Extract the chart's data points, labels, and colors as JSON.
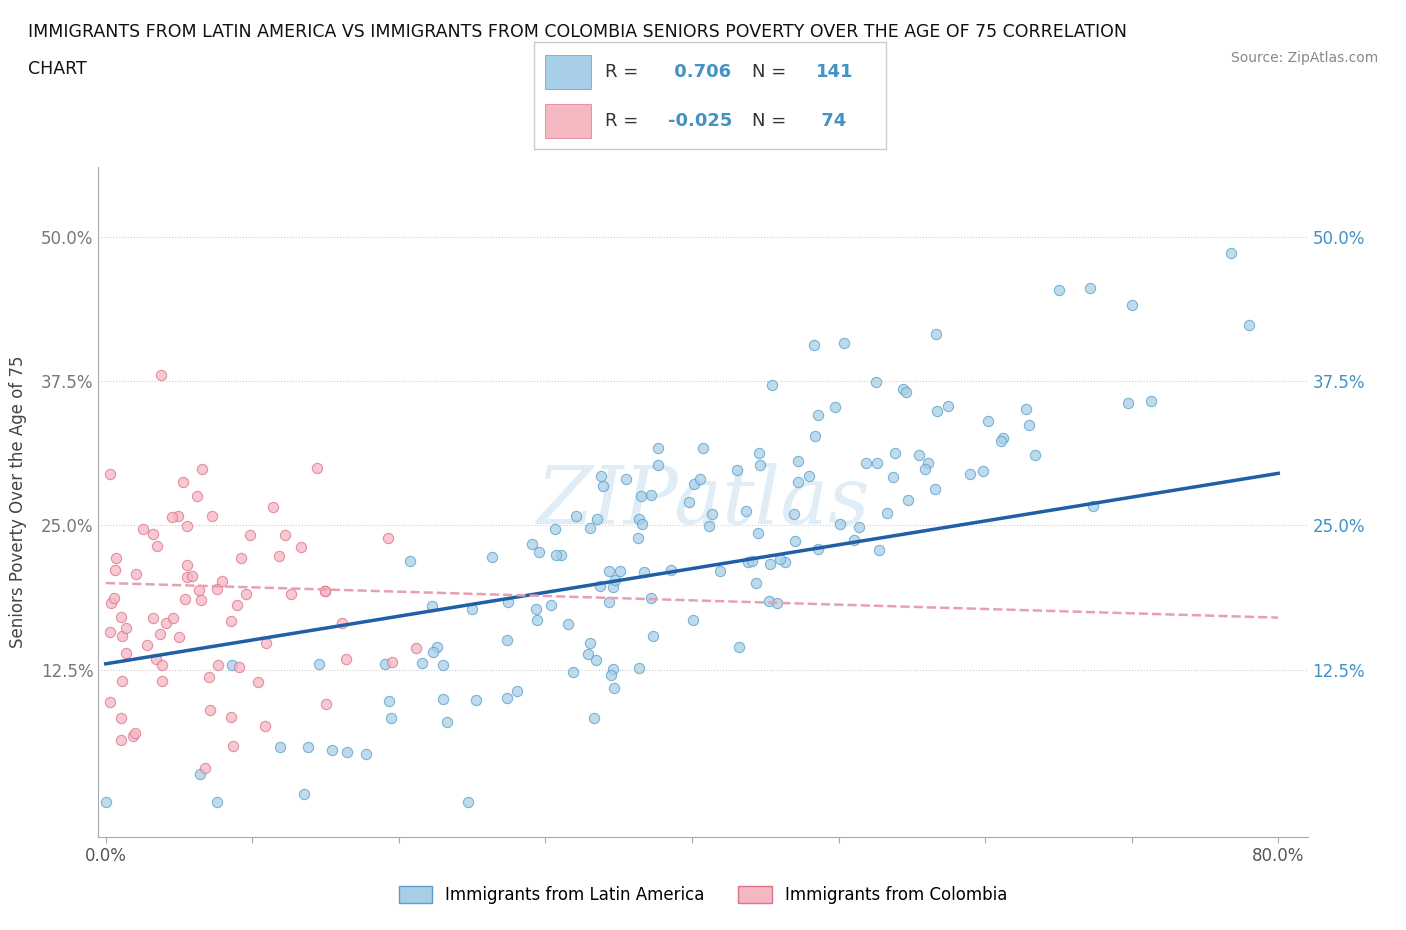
{
  "title_line1": "IMMIGRANTS FROM LATIN AMERICA VS IMMIGRANTS FROM COLOMBIA SENIORS POVERTY OVER THE AGE OF 75 CORRELATION",
  "title_line2": "CHART",
  "source": "Source: ZipAtlas.com",
  "ylabel": "Seniors Poverty Over the Age of 75",
  "xlim": [
    -0.005,
    0.82
  ],
  "ylim": [
    -0.02,
    0.56
  ],
  "xtick_positions": [
    0.0,
    0.1,
    0.2,
    0.3,
    0.4,
    0.5,
    0.6,
    0.7,
    0.8
  ],
  "xticklabels": [
    "0.0%",
    "",
    "",
    "",
    "",
    "",
    "",
    "",
    "80.0%"
  ],
  "ytick_positions": [
    0.125,
    0.25,
    0.375,
    0.5
  ],
  "ytick_labels": [
    "12.5%",
    "25.0%",
    "37.5%",
    "50.0%"
  ],
  "series1_color": "#a8cfe8",
  "series1_edge": "#5b9ec9",
  "series2_color": "#f4b8c1",
  "series2_edge": "#e07090",
  "series1_R": 0.706,
  "series1_N": 141,
  "series2_R": -0.025,
  "series2_N": 74,
  "trend1_color": "#1f5fa6",
  "trend2_color": "#e8a0b0",
  "trend1_start_y": 0.13,
  "trend1_end_y": 0.295,
  "trend2_start_y": 0.2,
  "trend2_end_y": 0.17,
  "watermark": "ZIPatlas",
  "legend_entries": [
    "Immigrants from Latin America",
    "Immigrants from Colombia"
  ],
  "legend_R_color": "#4292c6",
  "background_color": "#ffffff"
}
